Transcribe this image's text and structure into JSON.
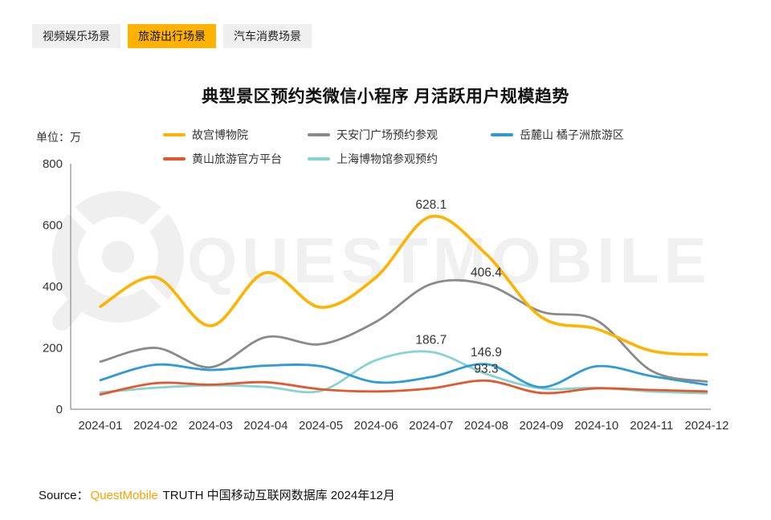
{
  "tabs": [
    {
      "key": "video-entertainment",
      "label": "视频娱乐场景",
      "active": false
    },
    {
      "key": "travel",
      "label": "旅游出行场景",
      "active": true
    },
    {
      "key": "auto-consumption",
      "label": "汽车消费场景",
      "active": false
    }
  ],
  "header": {
    "title": "典型景区预约类微信小程序 月活跃用户规模趋势",
    "unit_label": "单位：万"
  },
  "watermark": "QUESTMOBILE",
  "source": {
    "prefix": "Source：",
    "brand": "QuestMobile",
    "suffix": " TRUTH 中国移动互联网数据库 2024年12月",
    "brand_color": "#FFA000"
  },
  "chart_data": {
    "type": "line",
    "smooth": true,
    "grid": false,
    "legend_position": "top",
    "x": [
      "2024-01",
      "2024-02",
      "2024-03",
      "2024-04",
      "2024-05",
      "2024-06",
      "2024-07",
      "2024-08",
      "2024-09",
      "2024-10",
      "2024-11",
      "2024-12"
    ],
    "ylim": [
      0,
      800
    ],
    "yticks": [
      0,
      200,
      400,
      600,
      800
    ],
    "series": [
      {
        "name": "故宫博物院",
        "color": "#FFB300",
        "values": [
          335,
          430,
          272,
          445,
          332,
          430,
          628.1,
          505,
          300,
          262,
          190,
          178
        ]
      },
      {
        "name": "天安门广场预约参观",
        "color": "#8A8A8A",
        "values": [
          155,
          200,
          137,
          235,
          212,
          285,
          408,
          406.4,
          318,
          290,
          125,
          90
        ]
      },
      {
        "name": "岳麓山 橘子洲旅游区",
        "color": "#2E9BD5",
        "values": [
          95,
          145,
          128,
          142,
          140,
          88,
          105,
          146.9,
          72,
          140,
          108,
          80
        ]
      },
      {
        "name": "黄山旅游官方平台",
        "color": "#E4572E",
        "values": [
          48,
          85,
          80,
          88,
          65,
          58,
          68,
          93.3,
          53,
          68,
          63,
          58
        ]
      },
      {
        "name": "上海博物馆参观预约",
        "color": "#86D3CF",
        "values": [
          55,
          70,
          78,
          73,
          60,
          160,
          186.7,
          115,
          68,
          70,
          58,
          52
        ]
      }
    ],
    "annotations": [
      {
        "series": "故宫博物院",
        "x": "2024-07",
        "label": "628.1"
      },
      {
        "series": "天安门广场预约参观",
        "x": "2024-08",
        "label": "406.4"
      },
      {
        "series": "上海博物馆参观预约",
        "x": "2024-07",
        "label": "186.7"
      },
      {
        "series": "岳麓山 橘子洲旅游区",
        "x": "2024-08",
        "label": "146.9"
      },
      {
        "series": "黄山旅游官方平台",
        "x": "2024-08",
        "label": "93.3"
      }
    ]
  }
}
